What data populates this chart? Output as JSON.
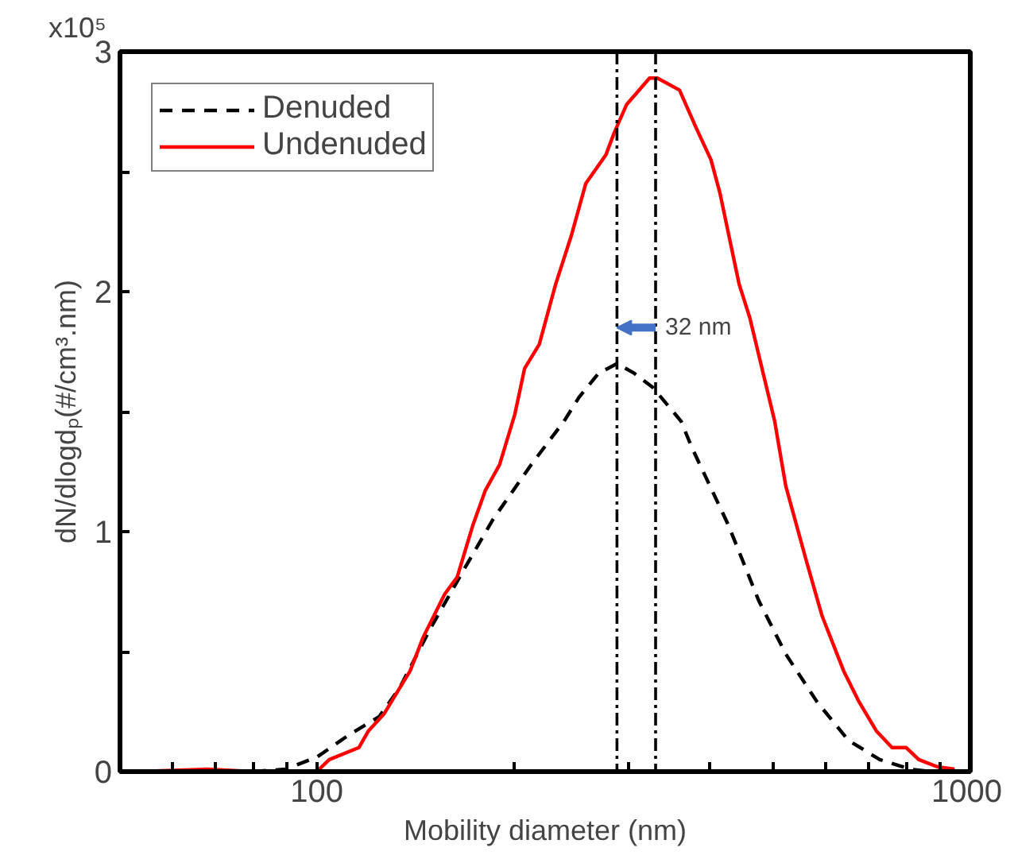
{
  "chart_data": {
    "type": "line",
    "xlabel": "Mobility diameter (nm)",
    "ylabel": "dN/dlogdₚ(#/cm³.nm)",
    "log": "x",
    "grid": false,
    "legend": "top left",
    "xlim": [
      50,
      1000
    ],
    "ylim": [
      0,
      3
    ],
    "xticks": [
      {
        "value": 60,
        "label": null
      },
      {
        "value": 70,
        "label": null
      },
      {
        "value": 80,
        "label": null
      },
      {
        "value": 90,
        "label": null
      },
      100,
      {
        "value": 200,
        "label": null
      },
      {
        "value": 300,
        "label": null
      },
      {
        "value": 400,
        "label": null
      },
      {
        "value": 500,
        "label": null
      },
      {
        "value": 600,
        "label": null
      },
      {
        "value": 700,
        "label": null
      },
      {
        "value": 800,
        "label": null
      },
      {
        "value": 900,
        "label": null
      },
      1000
    ],
    "yticks": [
      0,
      {
        "value": 0.5,
        "label": null
      },
      1,
      {
        "value": 1.5,
        "label": null
      },
      2,
      {
        "value": 2.5,
        "label": null
      },
      3
    ],
    "annotations": [
      "x10⁵",
      {
        "text": "32 nm",
        "x": 330,
        "y": 1.85
      }
    ],
    "ref_lines": [
      {
        "axis": "x",
        "value": 288,
        "color": "#000000"
      },
      {
        "axis": "x",
        "value": 330,
        "color": "#000000"
      }
    ],
    "series": [
      {
        "name": "Denuded",
        "color": "#000000",
        "line_style": "dashed",
        "x": [
          80,
          89.5,
          100,
          111.6,
          124.7,
          134,
          149.5,
          167,
          186,
          213,
          239,
          252,
          270,
          288,
          306,
          327,
          361,
          375,
          426,
          475,
          522,
          583,
          651,
          727,
          811,
          871
        ],
        "values": [
          0,
          0.01,
          0.06,
          0.15,
          0.23,
          0.35,
          0.6,
          0.83,
          1.05,
          1.28,
          1.46,
          1.56,
          1.66,
          1.7,
          1.66,
          1.6,
          1.46,
          1.35,
          1.03,
          0.71,
          0.49,
          0.29,
          0.13,
          0.05,
          0.01,
          0
        ]
      },
      {
        "name": "Undenuded",
        "color": "#ff0000",
        "line_style": "solid",
        "x": [
          53,
          68,
          80,
          94.6,
          100,
          104.5,
          116,
          120,
          126.7,
          139,
          145.5,
          157,
          164,
          173.5,
          181,
          190.5,
          201,
          208,
          219,
          232,
          245,
          258,
          277,
          285,
          298,
          323,
          332,
          359,
          381,
          401,
          414,
          443,
          460,
          502,
          522,
          561,
          593,
          640,
          676,
          718,
          759,
          798,
          834,
          891,
          946
        ],
        "values": [
          0,
          0.01,
          0,
          0,
          0,
          0.05,
          0.1,
          0.17,
          0.24,
          0.42,
          0.56,
          0.74,
          0.81,
          1.03,
          1.17,
          1.28,
          1.49,
          1.68,
          1.78,
          2.03,
          2.23,
          2.45,
          2.57,
          2.66,
          2.78,
          2.89,
          2.89,
          2.84,
          2.68,
          2.55,
          2.41,
          2.03,
          1.89,
          1.46,
          1.19,
          0.88,
          0.65,
          0.42,
          0.29,
          0.17,
          0.1,
          0.1,
          0.05,
          0.02,
          0.01
        ]
      }
    ]
  }
}
